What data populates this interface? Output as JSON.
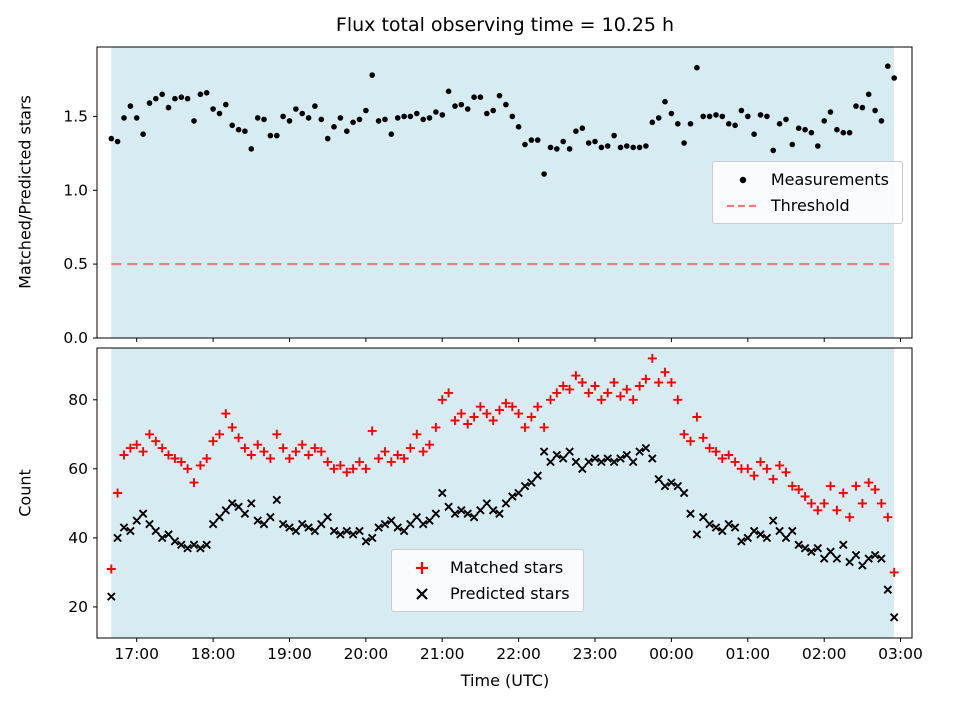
{
  "figure": {
    "background": "#ffffff",
    "shade_color": "#d6ebf2",
    "spine_color": "#000000"
  },
  "chart_data": [
    {
      "type": "scatter",
      "title": "Flux total observing time = 10.25 h",
      "ylabel": "Matched/Predicted stars",
      "ylim": [
        0.0,
        1.97
      ],
      "yticks": [
        0.0,
        0.5,
        1.0,
        1.5
      ],
      "ytick_labels": [
        "0.0",
        "0.5",
        "1.0",
        "1.5"
      ],
      "xlim": [
        16.48,
        27.15
      ],
      "x_hours": {
        "start": 16.6667,
        "step_minutes": 5,
        "n_points": 124
      },
      "shaded_span_hours": [
        16.6667,
        26.9167
      ],
      "xticklabels_visible": false,
      "grid": false,
      "legend_loc": "center right",
      "series": [
        {
          "name": "Measurements",
          "marker": "point",
          "color": "#000000",
          "values": [
            1.35,
            1.33,
            1.49,
            1.57,
            1.49,
            1.38,
            1.59,
            1.62,
            1.65,
            1.56,
            1.62,
            1.63,
            1.62,
            1.47,
            1.65,
            1.66,
            1.55,
            1.52,
            1.58,
            1.44,
            1.41,
            1.4,
            1.28,
            1.49,
            1.48,
            1.37,
            1.37,
            1.5,
            1.47,
            1.55,
            1.52,
            1.49,
            1.57,
            1.48,
            1.35,
            1.43,
            1.49,
            1.4,
            1.46,
            1.48,
            1.54,
            1.78,
            1.47,
            1.48,
            1.38,
            1.49,
            1.5,
            1.5,
            1.52,
            1.48,
            1.49,
            1.53,
            1.51,
            1.67,
            1.57,
            1.58,
            1.55,
            1.63,
            1.63,
            1.52,
            1.54,
            1.64,
            1.58,
            1.5,
            1.43,
            1.31,
            1.34,
            1.34,
            1.11,
            1.29,
            1.28,
            1.33,
            1.28,
            1.4,
            1.42,
            1.32,
            1.33,
            1.29,
            1.3,
            1.37,
            1.29,
            1.3,
            1.29,
            1.29,
            1.3,
            1.46,
            1.49,
            1.6,
            1.52,
            1.45,
            1.32,
            1.45,
            1.83,
            1.5,
            1.5,
            1.51,
            1.5,
            1.45,
            1.44,
            1.54,
            1.5,
            1.38,
            1.51,
            1.5,
            1.27,
            1.45,
            1.48,
            1.31,
            1.42,
            1.41,
            1.39,
            1.3,
            1.47,
            1.53,
            1.41,
            1.39,
            1.39,
            1.57,
            1.56,
            1.65,
            1.54,
            1.47,
            1.84,
            1.76
          ]
        },
        {
          "name": "Threshold",
          "style": "dashed-hline",
          "linestyle": "dashed",
          "color": "#ef7b7b",
          "y": 0.5
        }
      ]
    },
    {
      "type": "scatter",
      "ylabel": "Count",
      "xlabel": "Time (UTC)",
      "ylim": [
        11,
        95
      ],
      "yticks": [
        20,
        40,
        60,
        80
      ],
      "ytick_labels": [
        "20",
        "40",
        "60",
        "80"
      ],
      "xlim": [
        16.48,
        27.15
      ],
      "x_hours": {
        "start": 16.6667,
        "step_minutes": 5,
        "n_points": 124
      },
      "shaded_span_hours": [
        16.6667,
        26.9167
      ],
      "xtick_hours": [
        17,
        18,
        19,
        20,
        21,
        22,
        23,
        24,
        25,
        26,
        27
      ],
      "xtick_labels": [
        "17:00",
        "18:00",
        "19:00",
        "20:00",
        "21:00",
        "22:00",
        "23:00",
        "00:00",
        "01:00",
        "02:00",
        "03:00"
      ],
      "grid": false,
      "legend_loc": "lower center",
      "series": [
        {
          "name": "Matched stars",
          "marker": "plus",
          "color": "#ff0000",
          "values": [
            31,
            53,
            64,
            66,
            67,
            65,
            70,
            68,
            66,
            64,
            63,
            62,
            60,
            56,
            61,
            63,
            68,
            70,
            76,
            72,
            69,
            66,
            64,
            67,
            65,
            63,
            70,
            66,
            63,
            65,
            67,
            64,
            66,
            65,
            62,
            60,
            61,
            59,
            60,
            62,
            60,
            71,
            63,
            65,
            62,
            64,
            63,
            66,
            70,
            65,
            67,
            72,
            80,
            82,
            74,
            76,
            73,
            75,
            78,
            76,
            74,
            77,
            79,
            78,
            76,
            72,
            75,
            78,
            72,
            80,
            82,
            84,
            83,
            87,
            85,
            82,
            84,
            80,
            82,
            85,
            81,
            83,
            80,
            84,
            86,
            92,
            85,
            88,
            85,
            80,
            70,
            68,
            75,
            69,
            66,
            65,
            63,
            64,
            62,
            60,
            60,
            58,
            62,
            60,
            57,
            61,
            59,
            55,
            54,
            52,
            50,
            48,
            50,
            55,
            48,
            53,
            46,
            55,
            50,
            56,
            54,
            50,
            46,
            30
          ]
        },
        {
          "name": "Predicted stars",
          "marker": "x",
          "color": "#000000",
          "values": [
            23,
            40,
            43,
            42,
            45,
            47,
            44,
            42,
            40,
            41,
            39,
            38,
            37,
            38,
            37,
            38,
            44,
            46,
            48,
            50,
            49,
            47,
            50,
            45,
            44,
            46,
            51,
            44,
            43,
            42,
            44,
            43,
            42,
            44,
            46,
            42,
            41,
            42,
            41,
            42,
            39,
            40,
            43,
            44,
            45,
            43,
            42,
            44,
            46,
            44,
            45,
            47,
            53,
            49,
            47,
            48,
            47,
            46,
            48,
            50,
            48,
            47,
            50,
            52,
            53,
            55,
            56,
            58,
            65,
            62,
            64,
            63,
            65,
            62,
            60,
            62,
            63,
            62,
            63,
            62,
            63,
            64,
            62,
            65,
            66,
            63,
            57,
            55,
            56,
            55,
            53,
            47,
            41,
            46,
            44,
            43,
            42,
            44,
            43,
            39,
            40,
            42,
            41,
            40,
            45,
            42,
            40,
            42,
            38,
            37,
            36,
            37,
            34,
            36,
            34,
            38,
            33,
            35,
            32,
            34,
            35,
            34,
            25,
            17
          ]
        }
      ]
    }
  ]
}
